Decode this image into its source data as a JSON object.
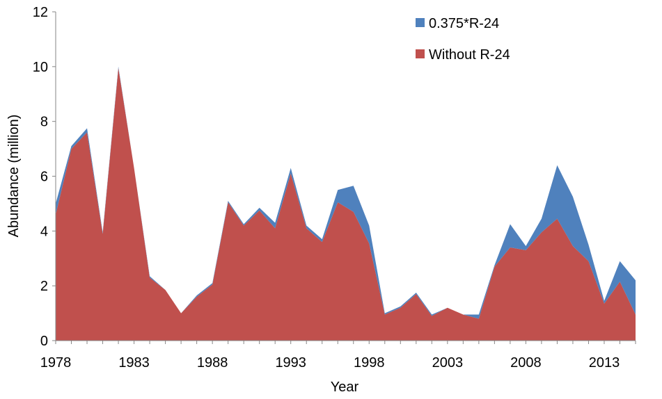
{
  "chart_data": {
    "type": "area",
    "stacked": true,
    "x": [
      1978,
      1979,
      1980,
      1981,
      1982,
      1983,
      1984,
      1985,
      1986,
      1987,
      1988,
      1989,
      1990,
      1991,
      1992,
      1993,
      1994,
      1995,
      1996,
      1997,
      1998,
      1999,
      2000,
      2001,
      2002,
      2003,
      2004,
      2005,
      2006,
      2007,
      2008,
      2009,
      2010,
      2011,
      2012,
      2013,
      2014,
      2015
    ],
    "series": [
      {
        "name": "Without R-24",
        "color": "#C0504D",
        "values": [
          4.6,
          7.0,
          7.6,
          3.9,
          9.95,
          6.3,
          2.3,
          1.85,
          1.0,
          1.6,
          2.05,
          5.05,
          4.2,
          4.75,
          4.1,
          6.1,
          4.1,
          3.6,
          5.05,
          4.7,
          3.55,
          0.95,
          1.2,
          1.7,
          0.9,
          1.2,
          0.95,
          0.8,
          2.7,
          3.4,
          3.3,
          3.95,
          4.45,
          3.45,
          2.9,
          1.35,
          2.15,
          0.95
        ]
      },
      {
        "name": "0.375*R-24",
        "color": "#4F81BD",
        "values": [
          0.4,
          0.1,
          0.15,
          0.05,
          0.05,
          0.0,
          0.05,
          0.0,
          0.0,
          0.05,
          0.05,
          0.05,
          0.05,
          0.1,
          0.2,
          0.2,
          0.1,
          0.1,
          0.45,
          0.95,
          0.65,
          0.05,
          0.05,
          0.05,
          0.05,
          0.0,
          0.0,
          0.15,
          0.05,
          0.85,
          0.15,
          0.5,
          1.95,
          1.8,
          0.6,
          0.1,
          0.75,
          1.25
        ]
      }
    ],
    "legend": [
      "0.375*R-24",
      "Without R-24"
    ],
    "legend_position": "top-right",
    "xlabel": "Year",
    "ylabel": "Abundance (million)",
    "xticks": [
      1978,
      1983,
      1988,
      1993,
      1998,
      2003,
      2008,
      2013
    ],
    "yticks": [
      0,
      2,
      4,
      6,
      8,
      10,
      12
    ],
    "xlim": [
      1978,
      2015
    ],
    "ylim": [
      0,
      12
    ],
    "grid": false
  }
}
